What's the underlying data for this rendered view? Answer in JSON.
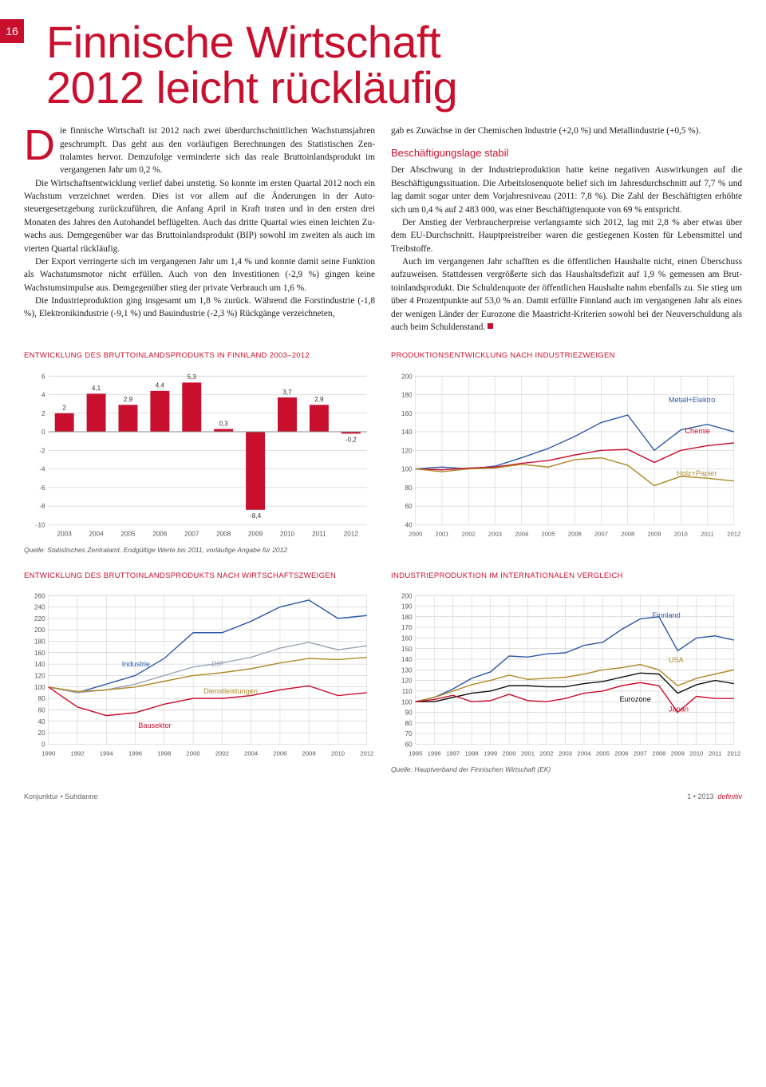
{
  "page_number": "16",
  "title_line1": "Finnische Wirtschaft",
  "title_line2": "2012 leicht rückläufig",
  "dropcap": "D",
  "col1_p1": "ie finnische Wirtschaft ist 2012 nach zwei überdurch­schnittlichen Wachstumsjahren geschrumpft. Das geht aus den vorläufigen Berechnungen des Statistischen Zen­tralamtes hervor. Demzufolge verminderte sich das reale Bruttoin­landsprodukt im vergangenen Jahr um 0,2 %.",
  "col1_p2": "Die Wirtschaftsentwicklung verlief dabei unstetig. So konnte im ersten Quartal 2012 noch ein Wachstum verzeich­net werden. Dies ist vor allem auf die Änderungen in der Auto­steuergesetzgebung zurückzuführen, die Anfang April in Kraft traten und in den ersten drei Monaten des Jahres den Autohan­del beflügelten. Auch das dritte Quartal wies einen leichten Zu­wachs aus. Demgegenüber war das Bruttoinlandsprodukt (BIP) sowohl im zweiten als auch im vierten Quartal rückläufig.",
  "col1_p3": "Der Export verringerte sich im vergangenen Jahr um 1,4 % und konnte damit seine Funktion als Wachstumsmotor nicht erfüllen. Auch von den Investitionen (-2,9 %) gingen keine Wachstumsimpulse aus.  Demgegenüber stieg der private Ver­brauch um 1,6 %.",
  "col1_p4": "Die Industrieproduktion ging insgesamt um 1,8 % zu­rück. Während die Forstindustrie (-1,8 %), Elektronikindustrie (-9,1 %) und Bauindustrie (-2,3 %) Rückgänge verzeichneten,",
  "col2_p1": "gab es Zuwächse in der Chemischen Industrie (+2,0 %) und Me­tallindustrie (+0,5 %).",
  "subhead": "Beschäftigungslage stabil",
  "col2_p2": "Der Abschwung in der Industrieproduktion hatte keine nega­tiven Auswirkungen auf die Beschäftigungssituation. Die Ar­beitslosenquote belief sich im Jahresdurchschnitt auf 7,7 % und lag damit sogar unter dem Vorjahresniveau (2011: 7,8 %). Die Zahl der Beschäftigten erhöhte sich um 0,4 % auf 2 483 000, was einer Beschäftigtenquote von 69 % entspricht.",
  "col2_p3": "Der Anstieg der Verbraucherpreise verlangsamte sich 2012, lag mit 2,8 % aber etwas über dem EU-Durchschnitt. Hauptpreistrei­ber waren die gestiegenen Kosten für Lebensmittel und Treibstoffe.",
  "col2_p4": "Auch im vergangenen Jahr schafften es die öffentlichen Haushalte nicht, einen Überschuss aufzuweisen. Stattdessen ver­größerte sich das Haushaltsdefizit auf 1,9 % gemessen am Brut­toinlandsprodukt. Die Schuldenquote der öffentlichen Haushalte nahm ebenfalls zu. Sie stieg um über 4 Prozentpunkte auf 53,0 % an. Damit erfüllte Finnland auch im vergangenen Jahr als eines der wenigen Länder der Eurozone die Maastricht-Kriterien so­wohl bei der Neuverschuldung als auch beim Schuldenstand.",
  "chart1": {
    "title": "ENTWICKLUNG DES BRUTTOINLANDSPRODUKTS IN FINNLAND 2003–2012",
    "type": "bar",
    "years": [
      "2003",
      "2004",
      "2005",
      "2006",
      "2007",
      "2008",
      "2009",
      "2010",
      "2011",
      "2012"
    ],
    "values": [
      2.0,
      4.1,
      2.9,
      4.4,
      5.3,
      0.3,
      -8.4,
      3.7,
      2.9,
      -0.2
    ],
    "ylim": [
      -10,
      6
    ],
    "ytick_step": 2,
    "bar_color": "#c8102e",
    "grid_color": "#c0c0c0",
    "axis_color": "#888",
    "label_fontsize": 8,
    "source": "Quelle: Statistisches Zentralamt. Endgültige Werte bis 2011, vorläufige Angabe für 2012"
  },
  "chart2": {
    "title": "PRODUKTIONSENTWICKLUNG NACH INDUSTRIEZWEIGEN",
    "type": "line",
    "years": [
      "2000",
      "2001",
      "2002",
      "2003",
      "2004",
      "2005",
      "2006",
      "2007",
      "2008",
      "2009",
      "2010",
      "2011",
      "2012"
    ],
    "ylim": [
      40,
      200
    ],
    "ytick_step": 20,
    "grid_color": "#c0c0c0",
    "series": {
      "metall_elektro": {
        "label": "Metall+Elektro",
        "color": "#2e5aa8",
        "values": [
          100,
          102,
          100,
          103,
          112,
          122,
          135,
          150,
          158,
          120,
          142,
          148,
          140
        ]
      },
      "chemie": {
        "label": "Chemie",
        "color": "#c8102e",
        "values": [
          100,
          99,
          101,
          102,
          106,
          109,
          115,
          120,
          121,
          107,
          120,
          125,
          128
        ]
      },
      "holz_papier": {
        "label": "Holz+Papier",
        "color": "#b08a2a",
        "values": [
          100,
          97,
          100,
          101,
          105,
          102,
          110,
          112,
          104,
          82,
          92,
          90,
          87
        ]
      }
    }
  },
  "chart3": {
    "title": "ENTWICKLUNG DES BRUTTOINLANDSPRODUKTS NACH WIRTSCHAFTSZWEIGEN",
    "type": "line",
    "years": [
      "1990",
      "1992",
      "1994",
      "1996",
      "1998",
      "2000",
      "2002",
      "2004",
      "2006",
      "2008",
      "2010",
      "2012"
    ],
    "ylim": [
      0,
      260
    ],
    "ytick_step": 20,
    "grid_color": "#c0c0c0",
    "series": {
      "industrie": {
        "label": "Industrie",
        "color": "#2e5aa8",
        "values": [
          100,
          90,
          105,
          120,
          150,
          195,
          195,
          215,
          240,
          252,
          220,
          225
        ]
      },
      "bip": {
        "label": "BIP",
        "color": "#9aa6b8",
        "values": [
          100,
          90,
          95,
          105,
          120,
          135,
          142,
          152,
          168,
          178,
          165,
          172
        ]
      },
      "dienst": {
        "label": "Dienstleistungen",
        "color": "#b08a2a",
        "values": [
          100,
          92,
          95,
          100,
          110,
          120,
          125,
          132,
          142,
          150,
          148,
          152
        ]
      },
      "bau": {
        "label": "Bausektor",
        "color": "#c8102e",
        "values": [
          100,
          65,
          50,
          55,
          70,
          80,
          80,
          85,
          95,
          102,
          85,
          90
        ]
      }
    }
  },
  "chart4": {
    "title": "INDUSTRIEPRODUKTION IM INTERNATIONALEN VERGLEICH",
    "type": "line",
    "years": [
      "1995",
      "1996",
      "1997",
      "1998",
      "1999",
      "2000",
      "2001",
      "2002",
      "2003",
      "2004",
      "2005",
      "2006",
      "2007",
      "2008",
      "2009",
      "2010",
      "2011",
      "2012"
    ],
    "ylim": [
      60,
      200
    ],
    "ytick_step": 10,
    "grid_color": "#c0c0c0",
    "series": {
      "finnland": {
        "label": "Finnland",
        "color": "#2e5aa8",
        "values": [
          100,
          104,
          112,
          122,
          128,
          143,
          142,
          145,
          146,
          153,
          156,
          168,
          178,
          180,
          148,
          160,
          162,
          158
        ]
      },
      "usa": {
        "label": "USA",
        "color": "#b08a2a",
        "values": [
          100,
          104,
          110,
          116,
          120,
          125,
          121,
          122,
          123,
          126,
          130,
          132,
          135,
          130,
          115,
          122,
          126,
          130
        ]
      },
      "eurozone": {
        "label": "Eurozone",
        "color": "#111",
        "values": [
          100,
          100,
          104,
          108,
          110,
          115,
          115,
          114,
          114,
          117,
          119,
          123,
          127,
          126,
          108,
          116,
          120,
          117
        ]
      },
      "japan": {
        "label": "Japan",
        "color": "#c8102e",
        "values": [
          100,
          102,
          106,
          100,
          101,
          107,
          101,
          100,
          103,
          108,
          110,
          115,
          118,
          115,
          90,
          105,
          103,
          103
        ]
      }
    },
    "source": "Quelle: Hauptverband der Finnischen Wirtschaft (EK)"
  },
  "footer_left": "Konjunktur • Suhdanne",
  "footer_issue": "1 • 2013",
  "footer_mag": "definitiv"
}
